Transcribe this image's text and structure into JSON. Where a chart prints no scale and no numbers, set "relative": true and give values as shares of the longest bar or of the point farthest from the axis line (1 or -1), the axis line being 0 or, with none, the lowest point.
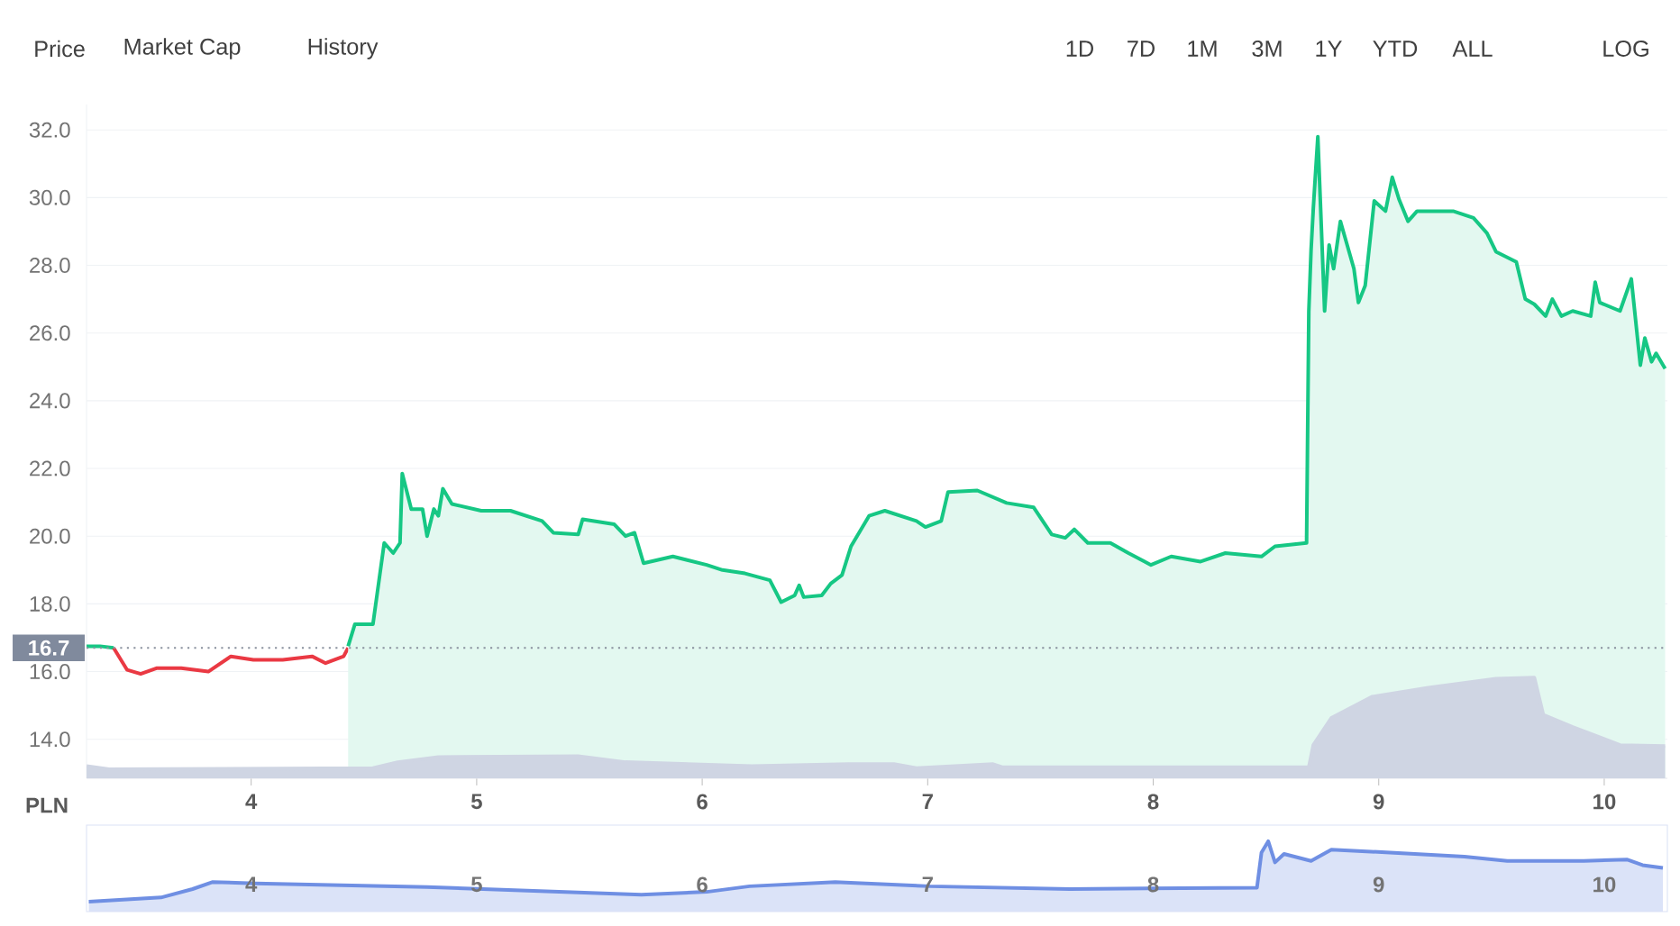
{
  "chart_data": [
    {
      "type": "line",
      "ylabel": "PLN",
      "annotations": [
        "Price",
        "Market Cap",
        "History",
        "1D",
        "7D",
        "1M",
        "3M",
        "1Y",
        "YTD",
        "ALL",
        "LOG"
      ],
      "xlim": [
        3.27,
        10.28
      ],
      "ylim": [
        12.85,
        32.75
      ],
      "xticks": [
        4,
        5,
        6,
        7,
        8,
        9,
        10
      ],
      "yticks": [
        {
          "value": 14,
          "label": "14.0"
        },
        {
          "value": 16,
          "label": "16.0"
        },
        {
          "value": 18,
          "label": "18.0"
        },
        {
          "value": 20,
          "label": "20.0"
        },
        {
          "value": 22,
          "label": "22.0"
        },
        {
          "value": 24,
          "label": "24.0"
        },
        {
          "value": 26,
          "label": "26.0"
        },
        {
          "value": 28,
          "label": "28.0"
        },
        {
          "value": 30,
          "label": "30.0"
        },
        {
          "value": 32,
          "label": "32.0"
        }
      ],
      "grid": "y",
      "ref_lines": [
        {
          "axis": "y",
          "value": 16.7,
          "label": "16.7",
          "color": "#8a919e",
          "line_style": "dotted"
        }
      ],
      "series": [
        {
          "type": "line",
          "color": "#16c784",
          "x": [
            3.27,
            3.33,
            3.39
          ],
          "values": [
            16.75,
            16.75,
            16.7
          ]
        },
        {
          "type": "line",
          "color": "#ea3943",
          "x": [
            3.39,
            3.45,
            3.51,
            3.58,
            3.69,
            3.81,
            3.91,
            4.01,
            4.14,
            4.27,
            4.33,
            4.41,
            4.43
          ],
          "values": [
            16.7,
            16.05,
            15.93,
            16.1,
            16.1,
            16.0,
            16.45,
            16.35,
            16.35,
            16.45,
            16.25,
            16.45,
            16.7
          ]
        },
        {
          "type": "area",
          "color": "#16c784",
          "x": [
            4.43,
            4.46,
            4.54,
            4.59,
            4.63,
            4.66,
            4.67,
            4.71,
            4.76,
            4.78,
            4.81,
            4.83,
            4.85,
            4.89,
            5.02,
            5.15,
            5.29,
            5.34,
            5.45,
            5.47,
            5.61,
            5.66,
            5.7,
            5.74,
            5.87,
            6.02,
            6.09,
            6.19,
            6.3,
            6.35,
            6.41,
            6.43,
            6.45,
            6.53,
            6.57,
            6.62,
            6.66,
            6.74,
            6.81,
            6.95,
            6.99,
            7.06,
            7.09,
            7.22,
            7.35,
            7.47,
            7.55,
            7.61,
            7.65,
            7.71,
            7.81,
            7.89,
            7.99,
            8.08,
            8.21,
            8.32,
            8.48,
            8.54,
            8.68,
            8.69,
            8.7,
            8.71,
            8.73,
            8.76,
            8.78,
            8.8,
            8.83,
            8.89,
            8.91,
            8.94,
            8.98,
            9.03,
            9.06,
            9.09,
            9.13,
            9.17,
            9.33,
            9.42,
            9.48,
            9.52,
            9.61,
            9.65,
            9.69,
            9.74,
            9.77,
            9.81,
            9.86,
            9.94,
            9.96,
            9.98,
            10.07,
            10.12,
            10.16,
            10.18,
            10.21,
            10.23,
            10.27
          ],
          "values": [
            16.75,
            17.4,
            17.4,
            19.8,
            19.5,
            19.8,
            21.85,
            20.8,
            20.8,
            20.0,
            20.8,
            20.6,
            21.4,
            20.95,
            20.75,
            20.75,
            20.45,
            20.1,
            20.05,
            20.5,
            20.35,
            20.0,
            20.1,
            19.2,
            19.4,
            19.15,
            19.0,
            18.9,
            18.7,
            18.05,
            18.25,
            18.55,
            18.2,
            18.25,
            18.6,
            18.85,
            19.7,
            20.6,
            20.75,
            20.45,
            20.27,
            20.45,
            21.3,
            21.35,
            20.98,
            20.85,
            20.05,
            19.95,
            20.2,
            19.8,
            19.8,
            19.5,
            19.15,
            19.4,
            19.25,
            19.5,
            19.4,
            19.7,
            19.8,
            26.65,
            28.45,
            29.7,
            31.8,
            26.65,
            28.6,
            27.9,
            29.3,
            27.9,
            26.9,
            27.4,
            29.9,
            29.6,
            30.6,
            29.95,
            29.3,
            29.6,
            29.6,
            29.4,
            28.95,
            28.4,
            28.1,
            27.0,
            26.85,
            26.5,
            27.0,
            26.5,
            26.65,
            26.5,
            27.5,
            26.9,
            26.65,
            27.6,
            25.05,
            25.85,
            25.15,
            25.4,
            24.95
          ]
        }
      ]
    },
    {
      "type": "area",
      "relative": true,
      "tick_labels": false,
      "xlim": [
        3.27,
        10.28
      ],
      "color": "#cfd5e3",
      "x": [
        3.27,
        3.37,
        4.54,
        4.65,
        4.83,
        5.45,
        5.66,
        6.22,
        6.65,
        6.85,
        6.95,
        7.29,
        7.33,
        8.69,
        8.71,
        8.79,
        8.97,
        9.22,
        9.52,
        9.69,
        9.73,
        9.86,
        10.0,
        10.07,
        10.27
      ],
      "values": [
        0.12,
        0.09,
        0.1,
        0.16,
        0.21,
        0.22,
        0.16,
        0.12,
        0.14,
        0.14,
        0.1,
        0.14,
        0.11,
        0.11,
        0.33,
        0.6,
        0.81,
        0.9,
        0.99,
        1.0,
        0.63,
        0.51,
        0.39,
        0.33,
        0.32
      ]
    },
    {
      "type": "area",
      "relative": true,
      "tick_labels": "x",
      "xlim": [
        3.27,
        10.28
      ],
      "xticks": [
        4,
        5,
        6,
        7,
        8,
        9,
        10
      ],
      "color": "#6f8fe3",
      "x": [
        3.28,
        3.6,
        3.74,
        3.83,
        4.02,
        4.78,
        5.73,
        6.02,
        6.21,
        6.59,
        7.01,
        7.63,
        8.46,
        8.48,
        8.51,
        8.54,
        8.58,
        8.7,
        8.79,
        9.05,
        9.38,
        9.57,
        9.91,
        10.1,
        10.17,
        10.26
      ],
      "values": [
        0.14,
        0.2,
        0.32,
        0.42,
        0.4,
        0.35,
        0.24,
        0.28,
        0.36,
        0.42,
        0.36,
        0.32,
        0.34,
        0.84,
        1.0,
        0.7,
        0.82,
        0.72,
        0.88,
        0.84,
        0.78,
        0.72,
        0.72,
        0.74,
        0.66,
        0.62
      ]
    }
  ]
}
